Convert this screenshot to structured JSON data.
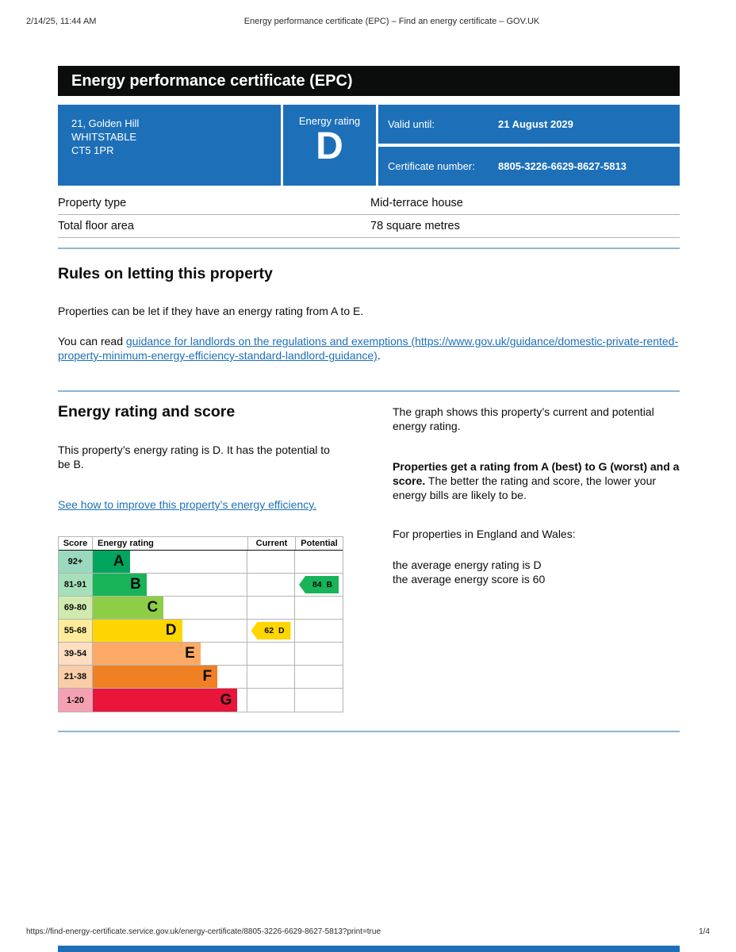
{
  "print_header": {
    "datetime": "2/14/25, 11:44 AM",
    "title": "Energy performance certificate (EPC) – Find an energy certificate – GOV.UK"
  },
  "banner": {
    "title": "Energy performance certificate (EPC)"
  },
  "summary": {
    "address_line1": "21, Golden Hill",
    "address_line2": "WHITSTABLE",
    "address_line3": "CT5 1PR",
    "energy_rating_label": "Energy rating",
    "energy_rating": "D",
    "valid_until_label": "Valid until:",
    "valid_until": "21 August 2029",
    "certificate_number_label": "Certificate number:",
    "certificate_number": "8805-3226-6629-8627-5813"
  },
  "property_details": {
    "rows": [
      {
        "label": "Property type",
        "value": "Mid-terrace house"
      },
      {
        "label": "Total floor area",
        "value": "78 square metres"
      }
    ]
  },
  "rules_section": {
    "heading": "Rules on letting this property",
    "paragraph1": "Properties can be let if they have an energy rating from A to E.",
    "paragraph2_prefix": "You can read ",
    "link_text": "guidance for landlords on the regulations and exemptions (https://www.gov.uk/guidance/domestic-private-rented-property-minimum-energy-efficiency-standard-landlord-guidance)",
    "paragraph2_suffix": "."
  },
  "rating_section": {
    "heading": "Energy rating and score",
    "intro": "This property’s energy rating is D. It has the potential to be B.",
    "improve_link": "See how to improve this property’s energy efficiency.",
    "right_para1": "The graph shows this property’s current and potential energy rating.",
    "right_para2_bold": "Properties get a rating from A (best) to G (worst) and a score.",
    "right_para2_rest": " The better the rating and score, the lower your energy bills are likely to be.",
    "right_para3": "For properties in England and Wales:",
    "right_para4_line1": "the average energy rating is D",
    "right_para4_line2": "the average energy score is 60"
  },
  "chart_data": {
    "type": "bar",
    "title": "Energy rating and score chart",
    "headers": [
      "Score",
      "Energy rating",
      "Current",
      "Potential"
    ],
    "bands": [
      {
        "score": "92+",
        "letter": "A",
        "color": "#00a65e",
        "tint": "#9bd9bf",
        "width_pct": 24
      },
      {
        "score": "81-91",
        "letter": "B",
        "color": "#19b459",
        "tint": "#a6e0bb",
        "width_pct": 35
      },
      {
        "score": "69-80",
        "letter": "C",
        "color": "#8dce46",
        "tint": "#d0eaae",
        "width_pct": 46
      },
      {
        "score": "55-68",
        "letter": "D",
        "color": "#ffd500",
        "tint": "#ffeb99",
        "width_pct": 58
      },
      {
        "score": "39-54",
        "letter": "E",
        "color": "#fcaa65",
        "tint": "#fedec1",
        "width_pct": 70
      },
      {
        "score": "21-38",
        "letter": "F",
        "color": "#ef8023",
        "tint": "#f9cda7",
        "width_pct": 81
      },
      {
        "score": "1-20",
        "letter": "G",
        "color": "#e9153b",
        "tint": "#f6a1b1",
        "width_pct": 94
      }
    ],
    "current": {
      "score": 62,
      "band": "D",
      "color": "#ffd500",
      "label": "62 D"
    },
    "potential": {
      "score": 84,
      "band": "B",
      "color": "#19b459",
      "label": "84 B"
    }
  },
  "print_footer": {
    "url": "https://find-energy-certificate.service.gov.uk/energy-certificate/8805-3226-6629-8627-5813?print=true",
    "page": "1/4"
  },
  "colors": {
    "govuk_blue": "#1d70b8",
    "banner_bg": "#0b0c0c",
    "link": "#1d70b8",
    "divider": "#8cb4d3",
    "grid": "#b1b4b6"
  }
}
